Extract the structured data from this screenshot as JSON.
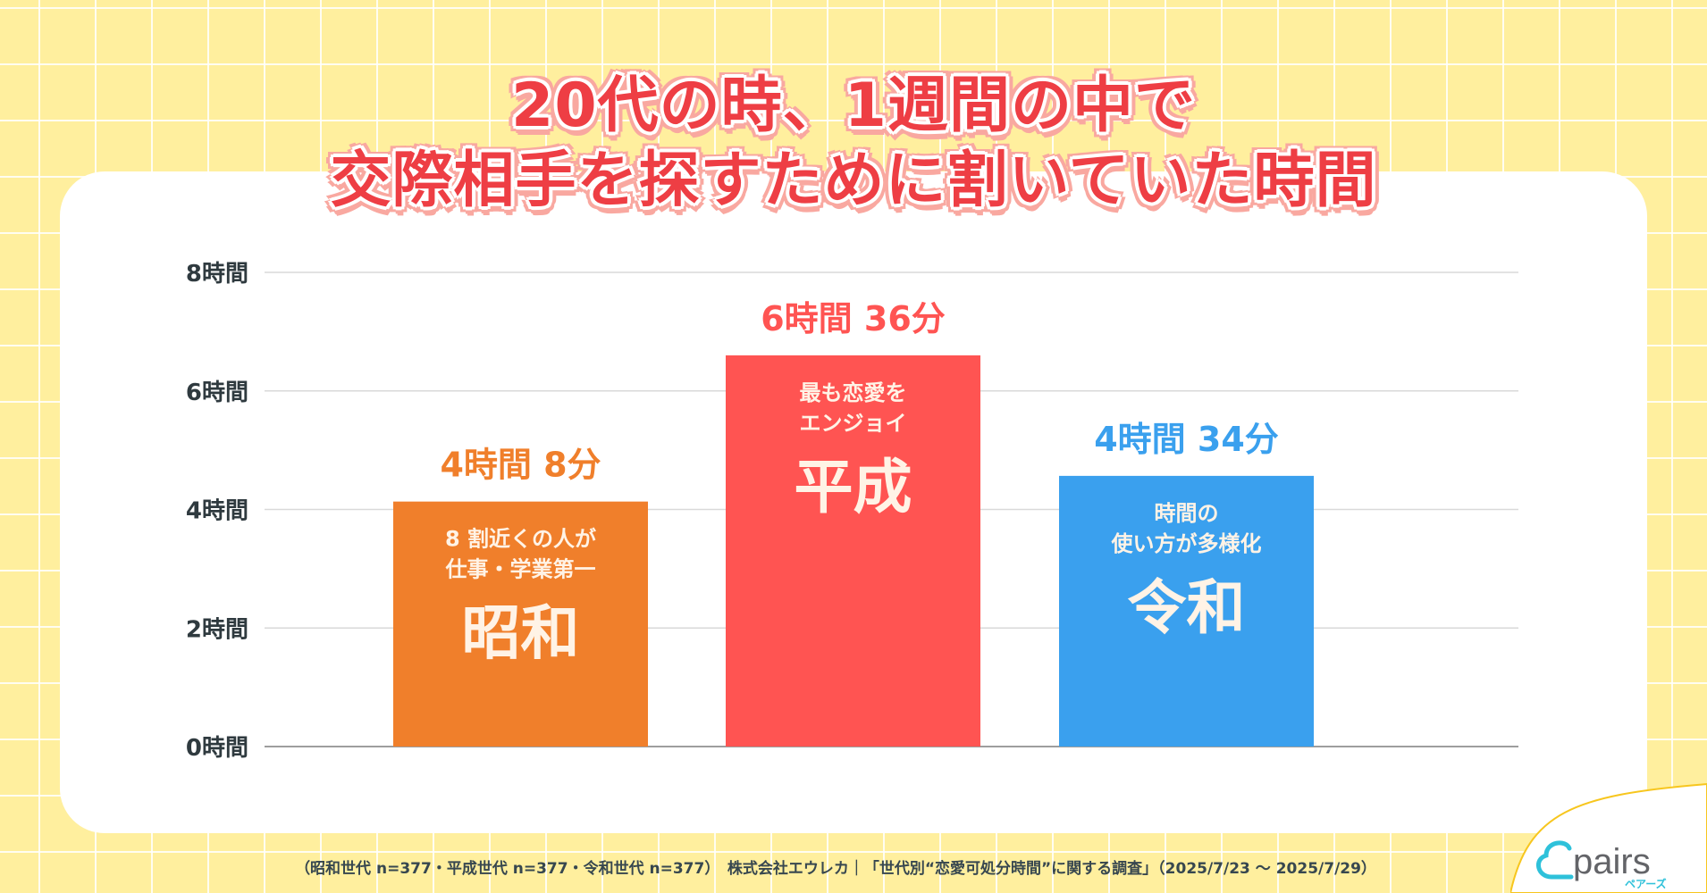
{
  "title_lines": [
    "20代の時、1週間の中で",
    "交際相手を探すために割いていた時間"
  ],
  "chart_data": {
    "type": "bar",
    "categories": [
      "昭和",
      "平成",
      "令和"
    ],
    "values": [
      4.1333,
      6.6,
      4.5667
    ],
    "value_labels": [
      "4時間 8分",
      "6時間 36分",
      "4時間 34分"
    ],
    "bar_captions": [
      [
        "8 割近くの人が",
        "仕事・学業第一"
      ],
      [
        "最も恋愛を",
        "エンジョイ"
      ],
      [
        "時間の",
        "使い方が多様化"
      ]
    ],
    "colors": [
      "#F07F2B",
      "#FF5452",
      "#3AA0EE"
    ],
    "yticks": [
      "0時間",
      "2時間",
      "4時間",
      "6時間",
      "8時間"
    ],
    "ylim": [
      0,
      8
    ],
    "grid": true,
    "unit": "時間"
  },
  "footer": "（昭和世代 n=377・平成世代 n=377・令和世代 n=377）　株式会社エウレカ｜「世代別“恋愛可処分時間”に関する調査」（2025/7/23 〜 2025/7/29）",
  "logo": {
    "text": "pairs",
    "sub": "ペアーズ",
    "color": "#2EC1DA"
  }
}
